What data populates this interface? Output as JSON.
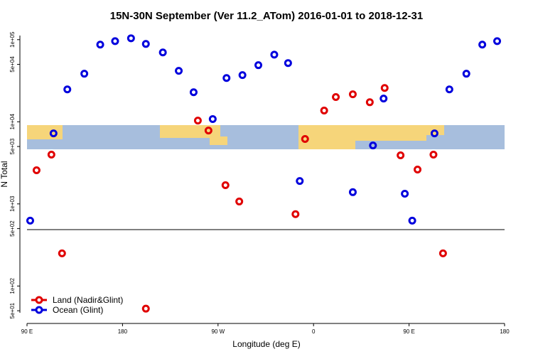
{
  "chart_data": {
    "type": "scatter",
    "title": "15N-30N September (Ver 11.2_ATom)   2016-01-01 to 2018-12-31",
    "x_label": "Longitude (deg E)",
    "y_label": "N Total",
    "log_y": true,
    "legend": "bottom-left",
    "xlim": [
      90,
      540
    ],
    "ylim": [
      35,
      137000
    ],
    "xticks": [
      {
        "value": 90,
        "label": "90 E"
      },
      180,
      {
        "value": 270,
        "label": "90 W"
      },
      {
        "value": 360,
        "label": "0"
      },
      {
        "value": 450,
        "label": "90 E"
      },
      {
        "value": 540,
        "label": "180"
      }
    ],
    "yticks": [
      {
        "value": 50,
        "label": "5e+01"
      },
      {
        "value": 100,
        "label": "1e+02"
      },
      {
        "value": 500,
        "label": "5e+02"
      },
      {
        "value": 1000,
        "label": "1e+03"
      },
      {
        "value": 5000,
        "label": "5e+03"
      },
      {
        "value": 10000,
        "label": "1e+04"
      },
      {
        "value": 50000,
        "label": "5e+04"
      },
      {
        "value": 100000,
        "label": "1e+05"
      }
    ],
    "series": [
      {
        "name": "Land (Nadir&Glint)",
        "color": "#e00000",
        "x": [
          99,
          113,
          123,
          202,
          251,
          261,
          277,
          290,
          343,
          352,
          370,
          381,
          397,
          413,
          427,
          442,
          458,
          473,
          482
        ],
        "values": [
          2570,
          3980,
          250,
          53,
          10350,
          7830,
          1690,
          1070,
          750,
          6170,
          13700,
          20000,
          21600,
          17300,
          25800,
          3900,
          2620,
          3980,
          250
        ]
      },
      {
        "name": "Ocean (Glint)",
        "color": "#0000dd",
        "x": [
          93,
          115,
          128,
          144,
          159,
          173,
          188,
          202,
          218,
          233,
          247,
          265,
          278,
          293,
          308,
          323,
          336,
          347,
          397,
          416,
          426,
          446,
          453,
          474,
          488,
          504,
          519,
          533
        ],
        "values": [
          625,
          7230,
          24800,
          38500,
          87000,
          96000,
          104000,
          88700,
          69900,
          41700,
          22900,
          10800,
          34100,
          37000,
          48900,
          65700,
          51900,
          1900,
          1390,
          5150,
          19200,
          1330,
          625,
          7230,
          24800,
          38500,
          87000,
          96000
        ]
      }
    ]
  }
}
